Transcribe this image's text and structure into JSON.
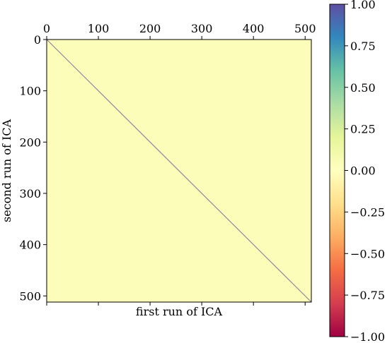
{
  "chart_data": {
    "type": "heatmap",
    "title": "",
    "xlabel": "first run of ICA",
    "ylabel": "second run of ICA",
    "x_ticks": [
      0,
      100,
      200,
      300,
      400,
      500
    ],
    "x_tick_labels": [
      "0",
      "100",
      "200",
      "300",
      "400",
      "500"
    ],
    "x_tick_position": "top",
    "y_ticks": [
      0,
      100,
      200,
      300,
      400,
      500
    ],
    "y_tick_labels": [
      "0",
      "100",
      "200",
      "300",
      "400",
      "500"
    ],
    "xlim": [
      0,
      512
    ],
    "ylim": [
      512,
      0
    ],
    "matrix_size": 512,
    "pattern": "identity-like correlation matrix: diagonal near 1, off-diagonal near 0",
    "diagonal_value": 1.0,
    "off_diagonal_value": 0.0,
    "colormap": "Spectral",
    "vmin": -1.0,
    "vmax": 1.0,
    "colorbar_ticks": [
      1.0,
      0.75,
      0.5,
      0.25,
      0.0,
      -0.25,
      -0.5,
      -0.75,
      -1.0
    ],
    "colorbar_tick_labels": [
      "1.00",
      "0.75",
      "0.50",
      "0.25",
      "0.00",
      "−0.25",
      "−0.50",
      "−0.75",
      "−1.00"
    ],
    "colorbar_position": "right",
    "grid": false
  },
  "colors": {
    "spectral_stops": [
      "#9e0142",
      "#d53e4f",
      "#f46d43",
      "#fdae61",
      "#fee08b",
      "#ffffbf",
      "#e6f598",
      "#abdda4",
      "#66c2a5",
      "#3288bd",
      "#5e4fa2"
    ],
    "background_cell": "#fdfdba"
  }
}
